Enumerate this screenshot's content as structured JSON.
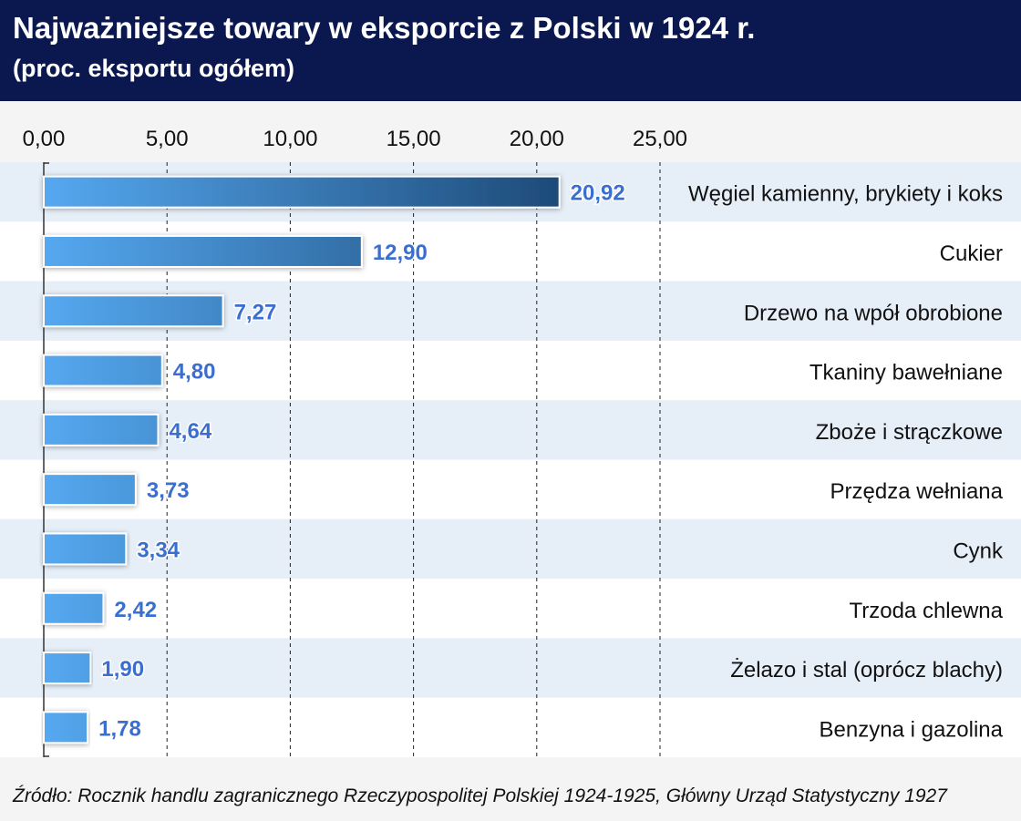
{
  "title": "Najważniejsze towary w eksporcie z Polski w 1924 r.",
  "subtitle": "(proc. eksportu ogółem)",
  "source": "Źródło: Rocznik handlu zagranicznego Rzeczypospolitej Polskiej 1924-1925, Główny Urząd Statystyczny 1927",
  "colors": {
    "header": "#0b1850",
    "bar_light": "#55a8f0",
    "bar_dark": "#1d4a78",
    "label": "#3a6fd0",
    "band": "#e6eef8"
  },
  "chart_data": {
    "type": "bar",
    "orientation": "horizontal",
    "title": "Najważniejsze towary w eksporcie z Polski w 1924 r.",
    "subtitle": "(proc. eksportu ogółem)",
    "categories": [
      "Węgiel kamienny, brykiety i koks",
      "Cukier",
      "Drzewo na wpół obrobione",
      "Tkaniny bawełniane",
      "Zboże i strączkowe",
      "Przędza wełniana",
      "Cynk",
      "Trzoda chlewna",
      "Żelazo i stal (oprócz blachy)",
      "Benzyna i gazolina"
    ],
    "values": [
      20.92,
      12.9,
      7.27,
      4.8,
      4.64,
      3.73,
      3.34,
      2.42,
      1.9,
      1.78
    ],
    "value_labels": [
      "20,92",
      "12,90",
      "7,27",
      "4,80",
      "4,64",
      "3,73",
      "3,34",
      "2,42",
      "1,90",
      "1,78"
    ],
    "xlim": [
      0,
      25
    ],
    "ticks": [
      0,
      5,
      10,
      15,
      20,
      25
    ],
    "tick_labels": [
      "0,00",
      "5,00",
      "10,00",
      "15,00",
      "20,00",
      "25,00"
    ],
    "axis_position": "top",
    "grid": "vertical dashed"
  }
}
